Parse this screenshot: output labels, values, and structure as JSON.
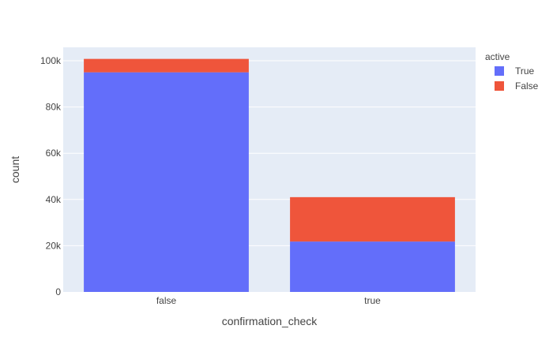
{
  "chart_data": {
    "type": "bar",
    "barmode": "stack",
    "categories": [
      "false",
      "true"
    ],
    "series": [
      {
        "name": "True",
        "values": [
          95000,
          21800
        ],
        "color": "#636efa"
      },
      {
        "name": "False",
        "values": [
          5800,
          19200
        ],
        "color": "#ef553b"
      }
    ],
    "xlabel": "confirmation_check",
    "ylabel": "count",
    "ylim": [
      0,
      105800
    ],
    "yticks": [
      0,
      20000,
      40000,
      60000,
      80000,
      100000
    ],
    "ytick_labels": [
      "0",
      "20k",
      "40k",
      "60k",
      "80k",
      "100k"
    ],
    "grid": true,
    "plot_background": "#e5ecf6",
    "legend": {
      "title": "active",
      "placement": "top-right"
    }
  }
}
